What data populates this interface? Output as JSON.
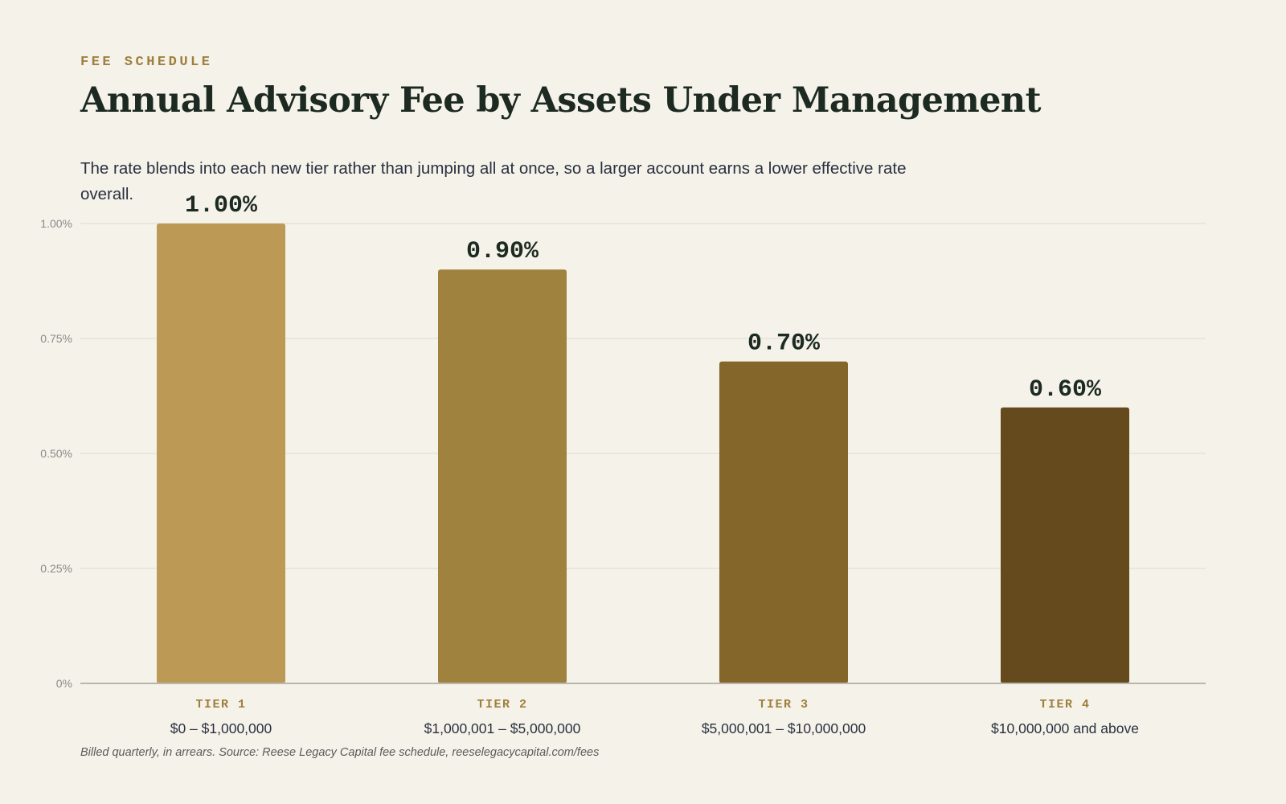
{
  "header": {
    "eyebrow": "FEE SCHEDULE",
    "title": "Annual Advisory Fee by Assets Under Management",
    "subtitle": "The rate blends into each new tier rather than jumping all at once, so a larger account earns a lower effective rate overall."
  },
  "footnote": "Billed quarterly, in arrears. Source: Reese Legacy Capital fee schedule, reeselegacycapital.com/fees",
  "colors": {
    "background": "#f5f2e9",
    "accent": "#9e7f3e",
    "grid": "#dedbd2",
    "baseline": "#b9b6ad",
    "tick_text": "#8a8a8a",
    "value_text": "#1c2a22",
    "range_text": "#2a3040",
    "bars": [
      "#bc9954",
      "#a0823f",
      "#84662b",
      "#654a1e"
    ]
  },
  "chart_data": {
    "type": "bar",
    "categories": [
      "TIER 1",
      "TIER 2",
      "TIER 3",
      "TIER 4"
    ],
    "category_ranges": [
      "$0 – $1,000,000",
      "$1,000,001 – $5,000,000",
      "$5,000,001 – $10,000,000",
      "$10,000,000 and above"
    ],
    "values": [
      1.0,
      0.9,
      0.7,
      0.6
    ],
    "value_labels": [
      "1.00%",
      "0.90%",
      "0.70%",
      "0.60%"
    ],
    "yticks": [
      0,
      0.25,
      0.5,
      0.75,
      1.0
    ],
    "ytick_labels": [
      "0%",
      "0.25%",
      "0.50%",
      "0.75%",
      "1.00%"
    ],
    "ylim": [
      0,
      1.0
    ],
    "grid": true
  }
}
